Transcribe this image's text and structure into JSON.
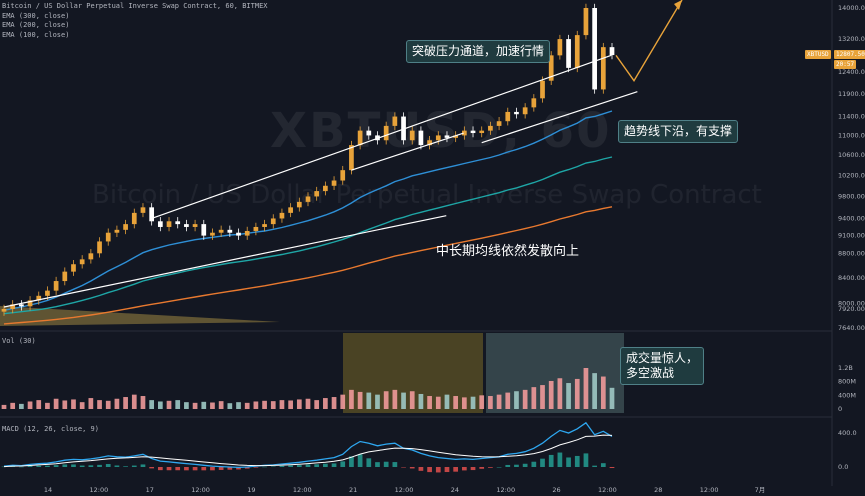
{
  "header": {
    "title": "Bitcoin / US Dollar Perpetual Inverse Swap Contract, 60, BITMEX",
    "ema_300": "EMA (300, close)",
    "ema_200": "EMA (200, close)",
    "ema_100": "EMA (100, close)"
  },
  "watermark": {
    "symbol": "XBTUSD, 60",
    "name": "Bitcoin / US Dollar Perpetual Inverse Swap Contract"
  },
  "panels": {
    "volume_label": "Vol (30)",
    "macd_label": "MACD (12, 26, close, 9)"
  },
  "annotations": {
    "breakout": "突破压力通道，加速行情",
    "support": "趋势线下沿，有支撑",
    "ema_diverge": "中长期均线依然发散向上",
    "volume_line1": "成交量惊人，",
    "volume_line2": "多空激战"
  },
  "price_tags": {
    "symbol_tag": "XBTUSD",
    "last_price": "12807.50",
    "countdown": "20:57"
  },
  "colors": {
    "background": "#131722",
    "up": "#e8a33a",
    "down": "#ffffff",
    "ema_100": "#2e8fd6",
    "ema_200": "#1ea6a6",
    "ema_300": "#e8792f",
    "volume_up": "#ef9a9a",
    "volume_down": "#9fc9c4",
    "macd": "#2ea7f0",
    "signal": "#ffffff",
    "highlight_orange": "#5d5326",
    "highlight_gray": "#3b4c51"
  },
  "chart_data": {
    "type": "candlestick",
    "timeframe": "60",
    "x_ticks": [
      "14",
      "12:00",
      "17",
      "12:00",
      "19",
      "12:00",
      "21",
      "12:00",
      "24",
      "12:00",
      "26",
      "12:00",
      "28",
      "12:00",
      "7月"
    ],
    "price_axis": {
      "ticks": [
        14000,
        13200,
        12400,
        11900,
        11400,
        11000,
        10600,
        10200,
        9800,
        9400,
        9100,
        8800,
        8400,
        8000,
        7920,
        7640
      ],
      "tick_labels": [
        "14000.00",
        "13200.00",
        "12400.00",
        "11900.00",
        "11400.00",
        "11000.00",
        "10600.00",
        "10200.00",
        "9800.00",
        "9400.00",
        "9100.00",
        "8800.00",
        "8400.00",
        "8000.00",
        "7920.00",
        "7640.00"
      ],
      "scale": "log"
    },
    "close_series": [
      7920,
      7990,
      7960,
      8050,
      8120,
      8200,
      8350,
      8500,
      8620,
      8700,
      8800,
      9000,
      9150,
      9200,
      9300,
      9500,
      9600,
      9350,
      9250,
      9350,
      9300,
      9250,
      9300,
      9100,
      9150,
      9200,
      9150,
      9100,
      9180,
      9250,
      9300,
      9400,
      9500,
      9600,
      9700,
      9800,
      9900,
      10000,
      10100,
      10300,
      10800,
      11100,
      11000,
      10900,
      11200,
      11400,
      10900,
      11100,
      10800,
      10900,
      11000,
      10950,
      11000,
      11100,
      11050,
      11100,
      11200,
      11300,
      11500,
      11450,
      11600,
      11800,
      12200,
      12800,
      13200,
      12500,
      13300,
      14000,
      12000,
      13000,
      12807
    ],
    "ema_100": [
      7900,
      7925,
      7950,
      7980,
      8010,
      8050,
      8100,
      8160,
      8220,
      8280,
      8350,
      8430,
      8510,
      8580,
      8650,
      8730,
      8810,
      8860,
      8900,
      8940,
      8970,
      9000,
      9030,
      9050,
      9070,
      9090,
      9110,
      9120,
      9140,
      9160,
      9180,
      9210,
      9240,
      9280,
      9320,
      9360,
      9410,
      9460,
      9520,
      9590,
      9680,
      9780,
      9860,
      9930,
      10000,
      10080,
      10130,
      10190,
      10230,
      10270,
      10310,
      10350,
      10390,
      10430,
      10470,
      10510,
      10550,
      10600,
      10660,
      10710,
      10770,
      10840,
      10920,
      11010,
      11110,
      11180,
      11260,
      11370,
      11400,
      11460,
      11520
    ],
    "ema_200": [
      7850,
      7865,
      7880,
      7895,
      7910,
      7930,
      7955,
      7985,
      8015,
      8050,
      8085,
      8125,
      8170,
      8210,
      8255,
      8300,
      8350,
      8385,
      8420,
      8450,
      8480,
      8510,
      8540,
      8565,
      8590,
      8615,
      8640,
      8660,
      8680,
      8705,
      8730,
      8755,
      8780,
      8810,
      8840,
      8875,
      8910,
      8950,
      8990,
      9035,
      9090,
      9150,
      9210,
      9265,
      9320,
      9380,
      9420,
      9470,
      9510,
      9550,
      9590,
      9630,
      9670,
      9710,
      9750,
      9790,
      9830,
      9870,
      9920,
      9960,
      10010,
      10060,
      10120,
      10190,
      10260,
      10310,
      10370,
      10440,
      10470,
      10520,
      10560
    ],
    "ema_300": [
      7700,
      7710,
      7720,
      7730,
      7740,
      7752,
      7765,
      7780,
      7795,
      7812,
      7830,
      7850,
      7872,
      7895,
      7918,
      7942,
      7968,
      7990,
      8012,
      8035,
      8058,
      8080,
      8102,
      8124,
      8146,
      8168,
      8190,
      8210,
      8232,
      8254,
      8276,
      8300,
      8325,
      8350,
      8376,
      8402,
      8430,
      8460,
      8490,
      8522,
      8558,
      8598,
      8638,
      8676,
      8714,
      8754,
      8784,
      8816,
      8846,
      8876,
      8906,
      8936,
      8966,
      8996,
      9026,
      9056,
      9088,
      9120,
      9156,
      9188,
      9222,
      9258,
      9298,
      9342,
      9390,
      9430,
      9470,
      9520,
      9545,
      9580,
      9610
    ],
    "volume_axis": {
      "ticks": [
        0,
        400000,
        800000,
        1200000
      ],
      "tick_labels": [
        "0",
        "400M",
        "800M",
        "1.2B"
      ]
    },
    "macd_axis": {
      "ticks": [
        0,
        400
      ],
      "tick_labels": [
        "0.0",
        "400.0"
      ]
    },
    "volume": [
      120000,
      180000,
      150000,
      220000,
      260000,
      180000,
      300000,
      250000,
      280000,
      200000,
      320000,
      260000,
      240000,
      300000,
      350000,
      420000,
      380000,
      260000,
      220000,
      240000,
      260000,
      200000,
      180000,
      210000,
      190000,
      230000,
      170000,
      200000,
      180000,
      220000,
      240000,
      230000,
      260000,
      250000,
      280000,
      300000,
      260000,
      320000,
      350000,
      420000,
      560000,
      500000,
      480000,
      420000,
      520000,
      560000,
      480000,
      520000,
      440000,
      380000,
      360000,
      420000,
      380000,
      340000,
      360000,
      400000,
      380000,
      420000,
      480000,
      520000,
      560000,
      640000,
      700000,
      820000,
      900000,
      760000,
      880000,
      1200000,
      1050000,
      950000,
      620000
    ],
    "macd": [
      10,
      20,
      15,
      30,
      40,
      45,
      60,
      80,
      90,
      85,
      95,
      110,
      130,
      120,
      115,
      130,
      150,
      100,
      70,
      60,
      50,
      40,
      30,
      20,
      10,
      5,
      0,
      -5,
      0,
      10,
      20,
      25,
      35,
      45,
      55,
      70,
      80,
      95,
      110,
      150,
      240,
      300,
      280,
      250,
      270,
      280,
      220,
      200,
      160,
      130,
      110,
      100,
      90,
      95,
      90,
      100,
      110,
      120,
      150,
      160,
      180,
      220,
      280,
      360,
      430,
      400,
      450,
      520,
      380,
      420,
      360
    ],
    "signal": [
      5,
      10,
      12,
      18,
      25,
      30,
      38,
      50,
      60,
      68,
      75,
      85,
      95,
      102,
      107,
      113,
      120,
      116,
      107,
      98,
      88,
      79,
      69,
      59,
      49,
      40,
      32,
      24,
      19,
      17,
      17,
      19,
      22,
      27,
      33,
      40,
      48,
      57,
      68,
      84,
      115,
      152,
      178,
      193,
      208,
      222,
      221,
      217,
      205,
      190,
      174,
      159,
      145,
      135,
      126,
      121,
      119,
      120,
      126,
      133,
      142,
      158,
      182,
      218,
      260,
      288,
      320,
      360,
      364,
      375,
      372
    ],
    "trendlines": [
      {
        "name": "channel-upper",
        "from": [
          17,
          9400
        ],
        "to": [
          69,
          12800
        ]
      },
      {
        "name": "channel-lower",
        "from": [
          0,
          7950
        ],
        "to": [
          50,
          9450
        ]
      },
      {
        "name": "consolidation-upper",
        "from": [
          40,
          10300
        ],
        "to": [
          52,
          11050
        ]
      },
      {
        "name": "support-trend",
        "from": [
          55,
          10850
        ],
        "to": [
          72,
          11950
        ]
      }
    ],
    "projection": {
      "from_high": 14000,
      "dip": 12400,
      "target_above": 14000
    }
  }
}
